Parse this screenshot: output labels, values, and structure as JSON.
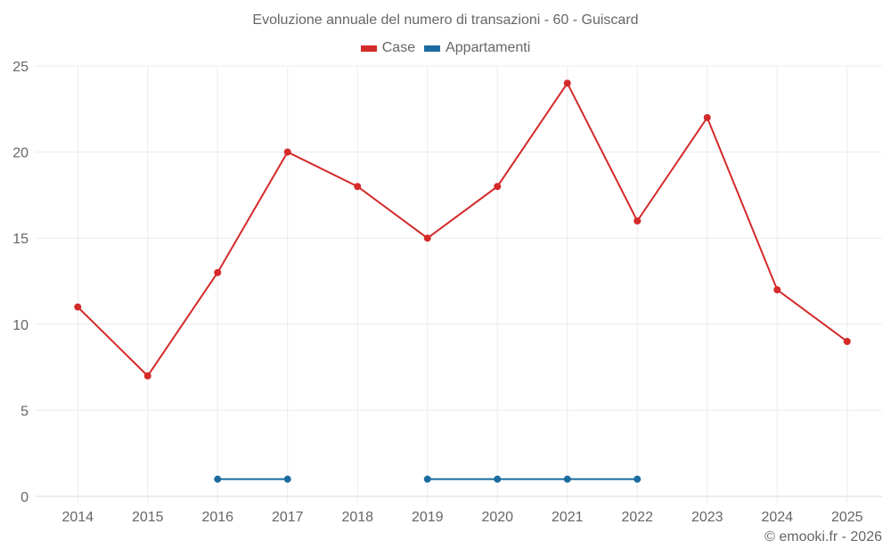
{
  "chart_data": {
    "type": "line",
    "title": "Evoluzione annuale del numero di transazioni - 60 - Guiscard",
    "categories": [
      "2014",
      "2015",
      "2016",
      "2017",
      "2018",
      "2019",
      "2020",
      "2021",
      "2022",
      "2023",
      "2024",
      "2025"
    ],
    "series": [
      {
        "name": "Case",
        "color": "#d42a2a",
        "values": [
          11,
          7,
          13,
          20,
          18,
          15,
          18,
          24,
          16,
          22,
          12,
          9
        ]
      },
      {
        "name": "Appartamenti",
        "color": "#1b6b9e",
        "values": [
          null,
          null,
          1,
          1,
          null,
          1,
          1,
          1,
          1,
          null,
          null,
          null
        ]
      }
    ],
    "xlabel": "",
    "ylabel": "",
    "ylim": [
      0,
      25
    ],
    "yticks": [
      0,
      5,
      10,
      15,
      20,
      25
    ],
    "grid": true,
    "legend_position": "top"
  },
  "credit": "© emooki.fr - 2026"
}
